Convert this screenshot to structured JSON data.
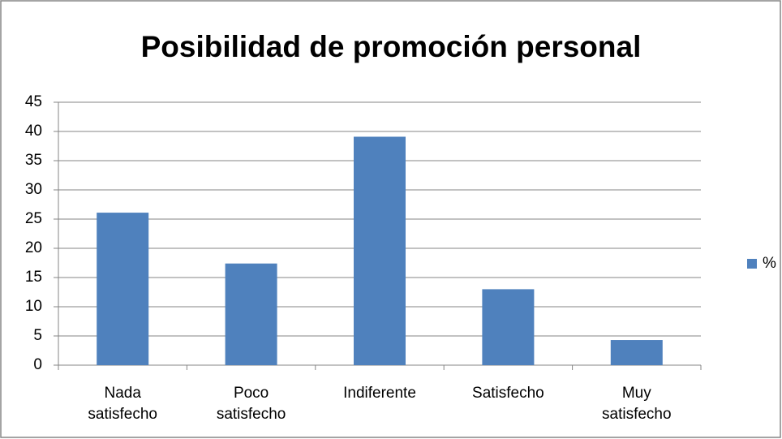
{
  "chart_data": {
    "type": "bar",
    "title": "Posibilidad de promoción personal",
    "categories": [
      "Nada satisfecho",
      "Poco satisfecho",
      "Indiferente",
      "Satisfecho",
      "Muy satisfecho"
    ],
    "series": [
      {
        "name": "%",
        "color": "#4f81bd",
        "values": [
          26.1,
          17.4,
          39.1,
          13.0,
          4.3
        ]
      }
    ],
    "ylim": [
      0,
      45
    ],
    "yticks": [
      0,
      5,
      10,
      15,
      20,
      25,
      30,
      35,
      40,
      45
    ],
    "grid": true,
    "legend": "right"
  }
}
